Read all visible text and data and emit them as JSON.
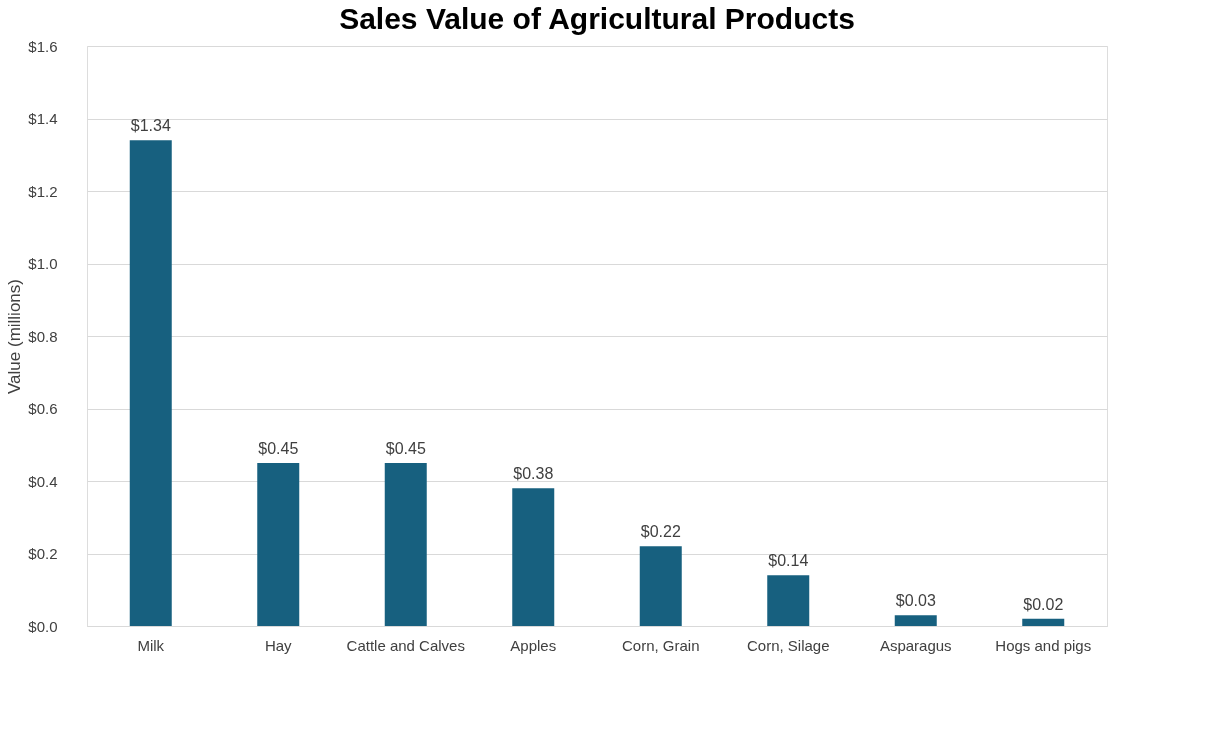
{
  "chart_data": {
    "type": "bar",
    "title": "Sales Value of Agricultural Products",
    "ylabel": "Value (millions)",
    "categories": [
      "Milk",
      "Hay",
      "Cattle and Calves",
      "Apples",
      "Corn, Grain",
      "Corn, Silage",
      "Asparagus",
      "Hogs and pigs"
    ],
    "values": [
      1.34,
      0.45,
      0.45,
      0.38,
      0.22,
      0.14,
      0.03,
      0.02
    ],
    "value_labels": [
      "$1.34",
      "$0.45",
      "$0.45",
      "$0.38",
      "$0.22",
      "$0.14",
      "$0.03",
      "$0.02"
    ],
    "color": "#17607f",
    "ylim": [
      0,
      1.6
    ],
    "yticks": [
      {
        "value": 0,
        "label": "$0.0"
      },
      {
        "value": 0.2,
        "label": "$0.2"
      },
      {
        "value": 0.4,
        "label": "$0.4"
      },
      {
        "value": 0.6,
        "label": "$0.6"
      },
      {
        "value": 0.8,
        "label": "$0.8"
      },
      {
        "value": 1.0,
        "label": "$1.0"
      },
      {
        "value": 1.2,
        "label": "$1.2"
      },
      {
        "value": 1.4,
        "label": "$1.4"
      },
      {
        "value": 1.6,
        "label": "$1.6"
      }
    ],
    "grid": "y"
  }
}
